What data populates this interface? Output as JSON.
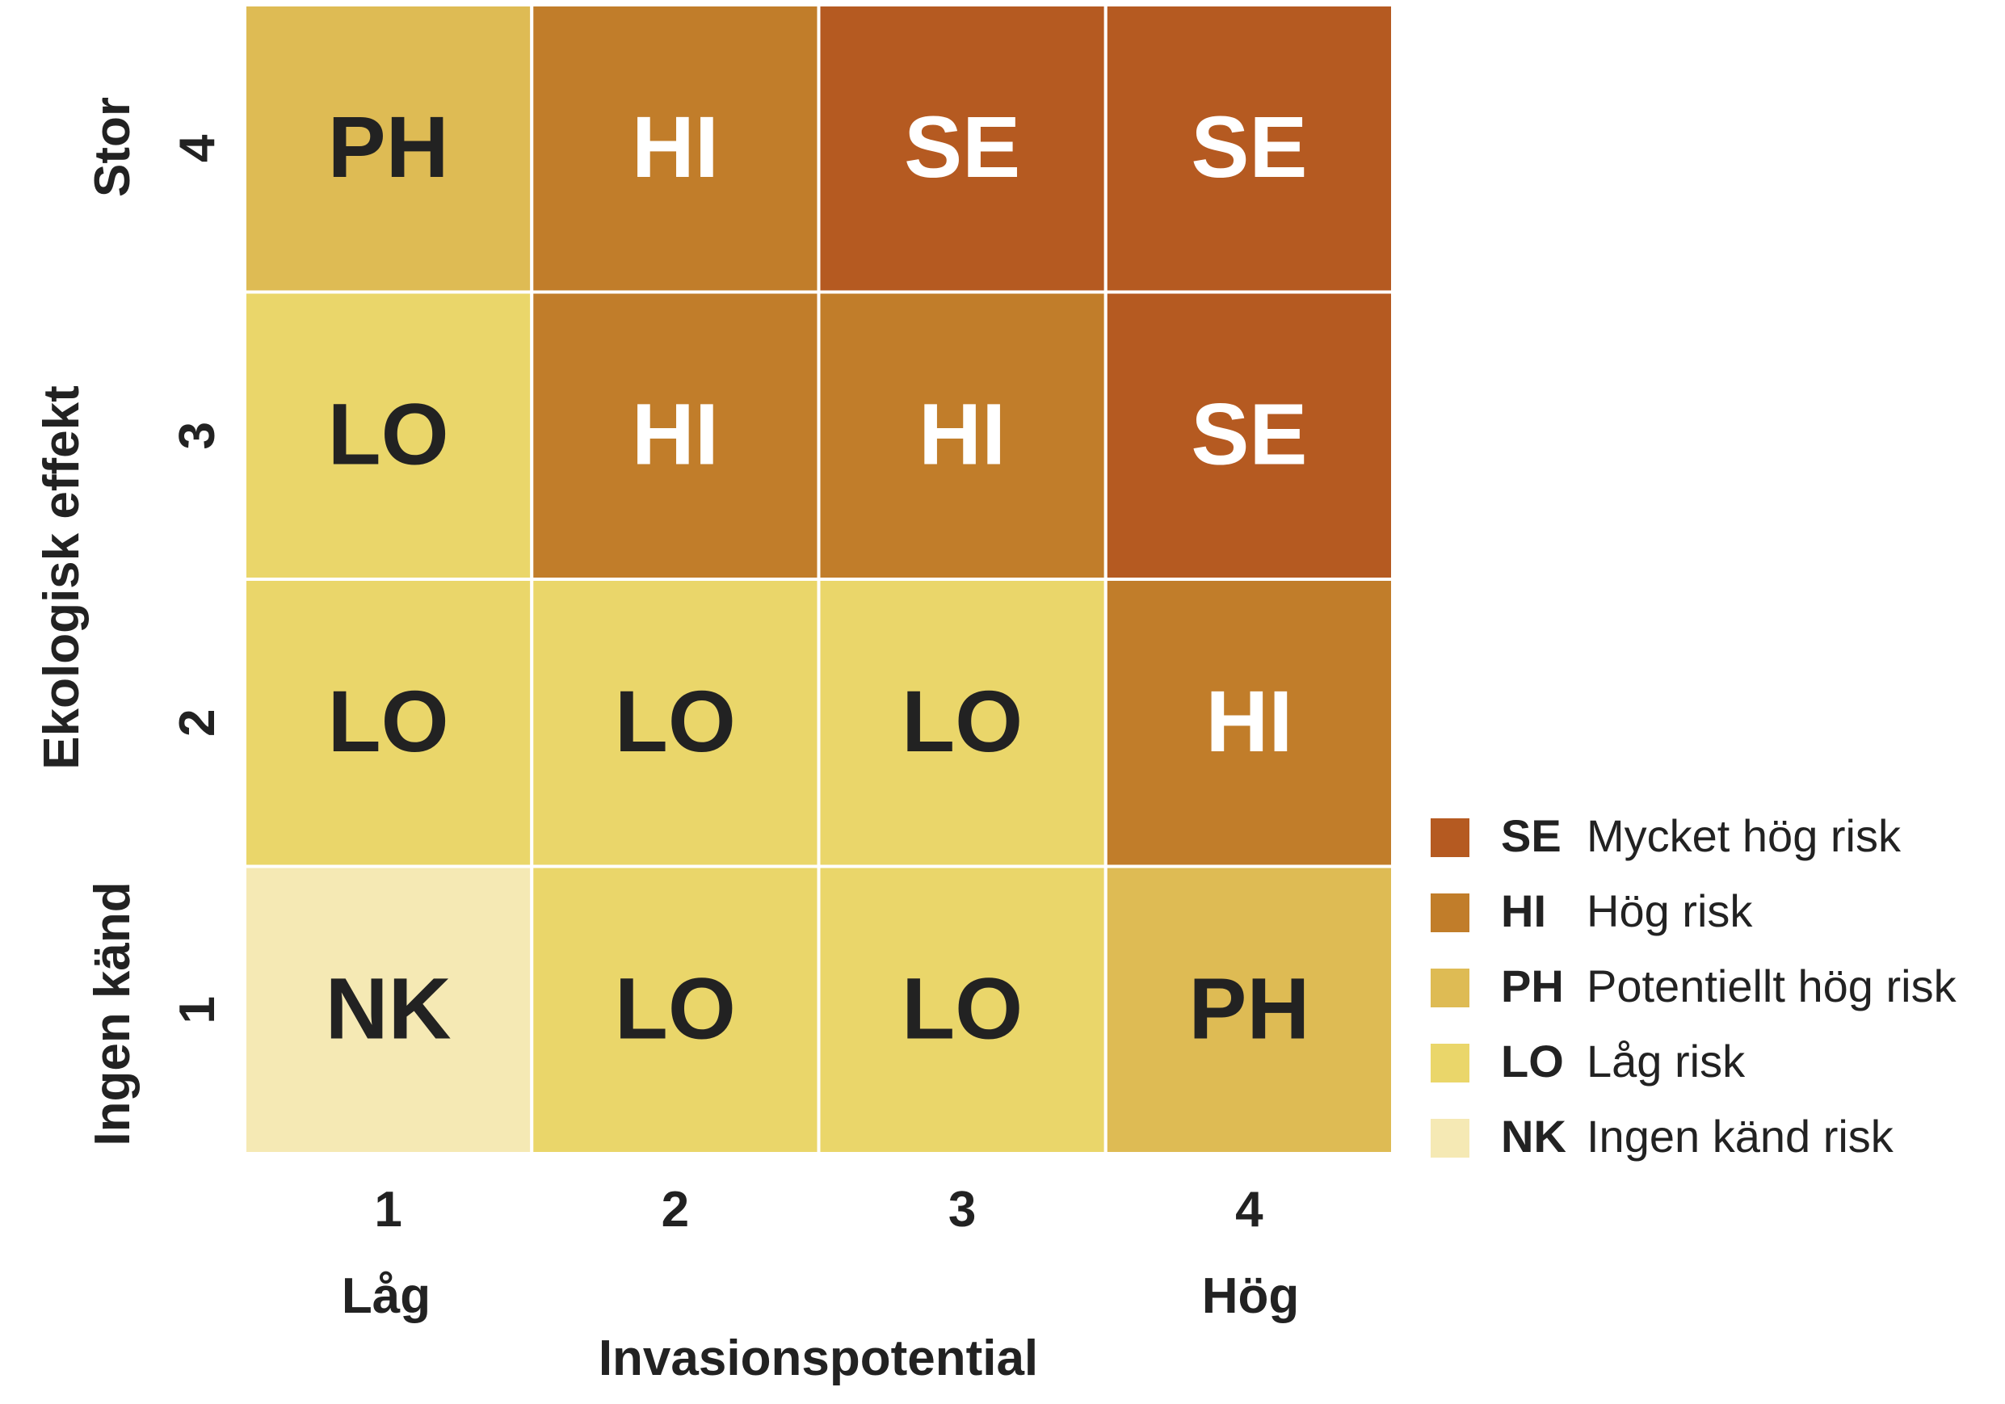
{
  "chart_data": {
    "type": "heatmap",
    "title": "",
    "xlabel": "Invasionspotential",
    "ylabel": "Ekologisk effekt",
    "x_categories": [
      "1",
      "2",
      "3",
      "4"
    ],
    "y_categories": [
      "1",
      "2",
      "3",
      "4"
    ],
    "x_end_labels": {
      "low": "Låg",
      "high": "Hög"
    },
    "y_end_labels": {
      "low": "Ingen känd",
      "high": "Stor"
    },
    "cells": [
      {
        "x": "1",
        "y": "4",
        "value": "PH"
      },
      {
        "x": "2",
        "y": "4",
        "value": "HI"
      },
      {
        "x": "3",
        "y": "4",
        "value": "SE"
      },
      {
        "x": "4",
        "y": "4",
        "value": "SE"
      },
      {
        "x": "1",
        "y": "3",
        "value": "LO"
      },
      {
        "x": "2",
        "y": "3",
        "value": "HI"
      },
      {
        "x": "3",
        "y": "3",
        "value": "HI"
      },
      {
        "x": "4",
        "y": "3",
        "value": "SE"
      },
      {
        "x": "1",
        "y": "2",
        "value": "LO"
      },
      {
        "x": "2",
        "y": "2",
        "value": "LO"
      },
      {
        "x": "3",
        "y": "2",
        "value": "LO"
      },
      {
        "x": "4",
        "y": "2",
        "value": "HI"
      },
      {
        "x": "1",
        "y": "1",
        "value": "NK"
      },
      {
        "x": "2",
        "y": "1",
        "value": "LO"
      },
      {
        "x": "3",
        "y": "1",
        "value": "LO"
      },
      {
        "x": "4",
        "y": "1",
        "value": "PH"
      }
    ],
    "legend": {
      "placement": "bottom-right",
      "entries": [
        {
          "code": "SE",
          "label": "Mycket hög risk",
          "color": "#b55a21",
          "text_color": "#ffffff"
        },
        {
          "code": "HI",
          "label": "Hög risk",
          "color": "#c17d2a",
          "text_color": "#ffffff"
        },
        {
          "code": "PH",
          "label": "Potentiellt hög risk",
          "color": "#debb54",
          "text_color": "#222222"
        },
        {
          "code": "LO",
          "label": "Låg risk",
          "color": "#ead66a",
          "text_color": "#222222"
        },
        {
          "code": "NK",
          "label": "Ingen känd risk",
          "color": "#f5e9b4",
          "text_color": "#222222"
        }
      ]
    },
    "grid": true
  }
}
